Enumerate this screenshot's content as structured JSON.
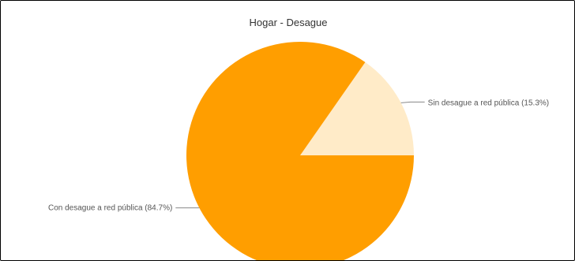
{
  "chart_data": {
    "type": "pie",
    "title": "Hogar - Desague",
    "slices": [
      {
        "label": "Sin desague a red pública (15.3%)",
        "value": 15.3,
        "color": "#FFEBC8"
      },
      {
        "label": "Con desague a red pública (84.7%)",
        "value": 84.7,
        "color": "#FF9E00"
      }
    ]
  }
}
